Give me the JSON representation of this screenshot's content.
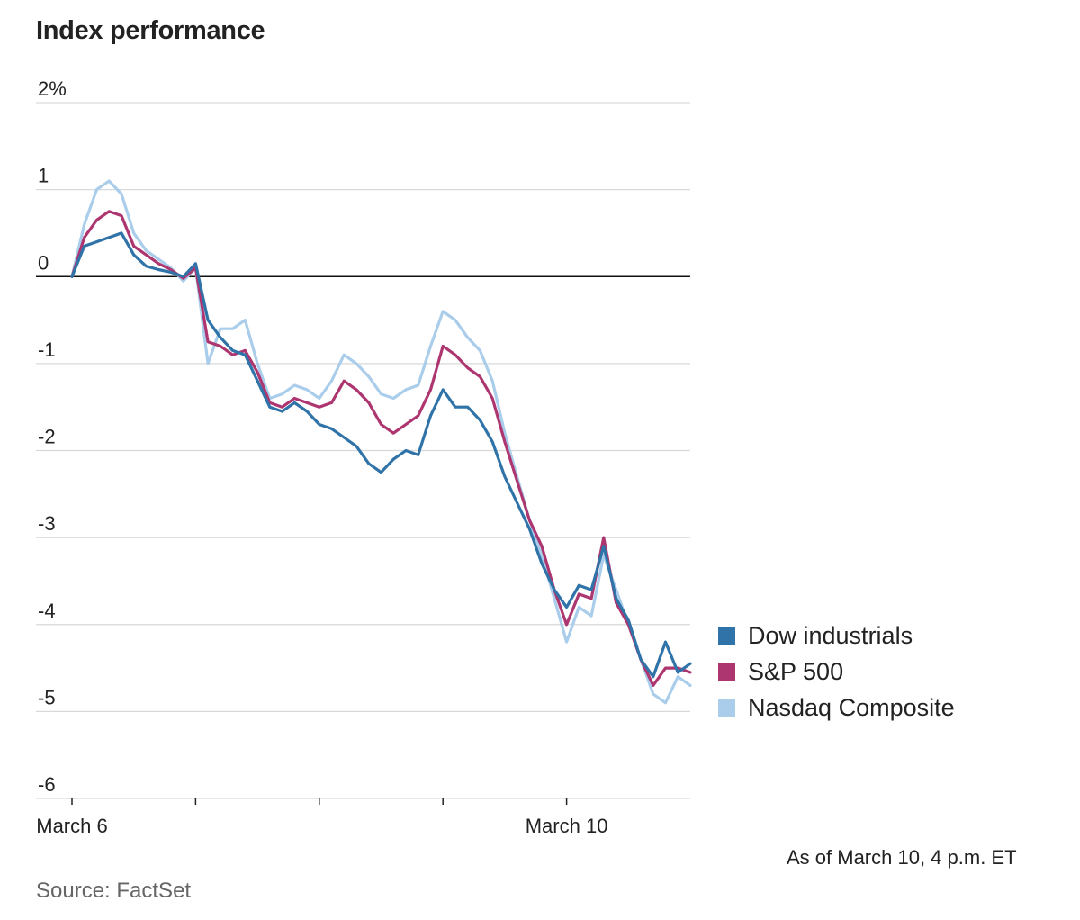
{
  "title": "Index performance",
  "note": "As of March 10, 4 p.m. ET",
  "source": "Source: FactSet",
  "chart_data": {
    "type": "line",
    "ylim": [
      -6,
      2
    ],
    "yticks": [
      {
        "value": 2,
        "label": "2%"
      },
      {
        "value": 1,
        "label": "1"
      },
      {
        "value": 0,
        "label": "0"
      },
      {
        "value": -1,
        "label": "-1"
      },
      {
        "value": -2,
        "label": "-2"
      },
      {
        "value": -3,
        "label": "-3"
      },
      {
        "value": -4,
        "label": "-4"
      },
      {
        "value": -5,
        "label": "-5"
      },
      {
        "value": -6,
        "label": "-6"
      }
    ],
    "xlim": [
      0,
      5
    ],
    "x_ticks": [
      0,
      1,
      2,
      3,
      4
    ],
    "x_tick_labels": [
      {
        "x": 0,
        "label": "March 6"
      },
      {
        "x": 4,
        "label": "March 10"
      }
    ],
    "grid": true,
    "legend_position": "right",
    "series": [
      {
        "name": "Nasdaq Composite",
        "color": "#a9cdea",
        "x": [
          0,
          0.1,
          0.2,
          0.3,
          0.4,
          0.5,
          0.6,
          0.7,
          0.8,
          0.9,
          1,
          1.1,
          1.2,
          1.3,
          1.4,
          1.5,
          1.6,
          1.7,
          1.8,
          1.9,
          2,
          2.1,
          2.2,
          2.3,
          2.4,
          2.5,
          2.6,
          2.7,
          2.8,
          2.9,
          3,
          3.1,
          3.2,
          3.3,
          3.4,
          3.5,
          3.6,
          3.7,
          3.8,
          3.9,
          4,
          4.1,
          4.2,
          4.3,
          4.4,
          4.5,
          4.6,
          4.7,
          4.8,
          4.9,
          5
        ],
        "y": [
          0,
          0.6,
          1.0,
          1.1,
          0.95,
          0.5,
          0.3,
          0.2,
          0.1,
          -0.05,
          0.1,
          -1.0,
          -0.6,
          -0.6,
          -0.5,
          -1.0,
          -1.4,
          -1.35,
          -1.25,
          -1.3,
          -1.4,
          -1.2,
          -0.9,
          -1.0,
          -1.15,
          -1.35,
          -1.4,
          -1.3,
          -1.25,
          -0.8,
          -0.4,
          -0.5,
          -0.7,
          -0.85,
          -1.2,
          -1.8,
          -2.3,
          -2.8,
          -3.2,
          -3.7,
          -4.2,
          -3.8,
          -3.9,
          -3.2,
          -3.6,
          -4.0,
          -4.4,
          -4.8,
          -4.9,
          -4.6,
          -4.7
        ]
      },
      {
        "name": "S&P 500",
        "color": "#ad3670",
        "x": [
          0,
          0.1,
          0.2,
          0.3,
          0.4,
          0.5,
          0.6,
          0.7,
          0.8,
          0.9,
          1,
          1.1,
          1.2,
          1.3,
          1.4,
          1.5,
          1.6,
          1.7,
          1.8,
          1.9,
          2,
          2.1,
          2.2,
          2.3,
          2.4,
          2.5,
          2.6,
          2.7,
          2.8,
          2.9,
          3,
          3.1,
          3.2,
          3.3,
          3.4,
          3.5,
          3.6,
          3.7,
          3.8,
          3.9,
          4,
          4.1,
          4.2,
          4.3,
          4.4,
          4.5,
          4.6,
          4.7,
          4.8,
          4.9,
          5
        ],
        "y": [
          0,
          0.45,
          0.65,
          0.75,
          0.7,
          0.35,
          0.25,
          0.15,
          0.08,
          -0.02,
          0.1,
          -0.75,
          -0.8,
          -0.9,
          -0.85,
          -1.1,
          -1.45,
          -1.5,
          -1.4,
          -1.45,
          -1.5,
          -1.45,
          -1.2,
          -1.3,
          -1.45,
          -1.7,
          -1.8,
          -1.7,
          -1.6,
          -1.3,
          -0.8,
          -0.9,
          -1.05,
          -1.15,
          -1.4,
          -1.9,
          -2.35,
          -2.8,
          -3.1,
          -3.6,
          -4.0,
          -3.65,
          -3.7,
          -3.0,
          -3.75,
          -4.0,
          -4.4,
          -4.7,
          -4.5,
          -4.5,
          -4.55
        ]
      },
      {
        "name": "Dow industrials",
        "color": "#2f73a8",
        "x": [
          0,
          0.1,
          0.2,
          0.3,
          0.4,
          0.5,
          0.6,
          0.7,
          0.8,
          0.9,
          1,
          1.1,
          1.2,
          1.3,
          1.4,
          1.5,
          1.6,
          1.7,
          1.8,
          1.9,
          2,
          2.1,
          2.2,
          2.3,
          2.4,
          2.5,
          2.6,
          2.7,
          2.8,
          2.9,
          3,
          3.1,
          3.2,
          3.3,
          3.4,
          3.5,
          3.6,
          3.7,
          3.8,
          3.9,
          4,
          4.1,
          4.2,
          4.3,
          4.4,
          4.5,
          4.6,
          4.7,
          4.8,
          4.9,
          5
        ],
        "y": [
          0,
          0.35,
          0.4,
          0.45,
          0.5,
          0.25,
          0.12,
          0.08,
          0.05,
          0.0,
          0.15,
          -0.5,
          -0.7,
          -0.85,
          -0.9,
          -1.2,
          -1.5,
          -1.55,
          -1.45,
          -1.55,
          -1.7,
          -1.75,
          -1.85,
          -1.95,
          -2.15,
          -2.25,
          -2.1,
          -2.0,
          -2.05,
          -1.6,
          -1.3,
          -1.5,
          -1.5,
          -1.65,
          -1.9,
          -2.3,
          -2.6,
          -2.9,
          -3.3,
          -3.6,
          -3.8,
          -3.55,
          -3.6,
          -3.1,
          -3.7,
          -3.95,
          -4.4,
          -4.6,
          -4.2,
          -4.55,
          -4.45
        ]
      }
    ]
  },
  "legend": [
    {
      "label": "Dow industrials",
      "color": "#2f73a8"
    },
    {
      "label": "S&P 500",
      "color": "#ad3670"
    },
    {
      "label": "Nasdaq Composite",
      "color": "#a9cdea"
    }
  ]
}
